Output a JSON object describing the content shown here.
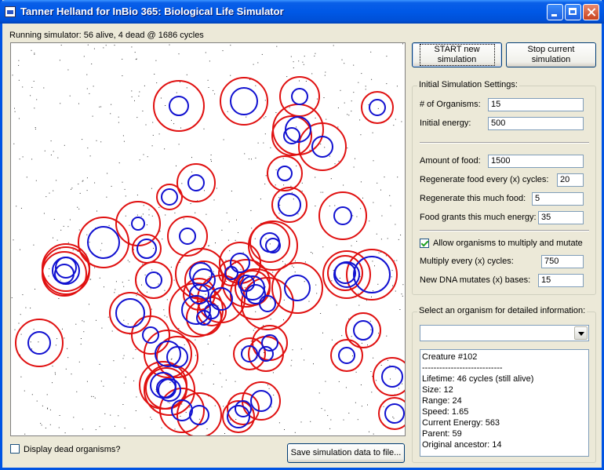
{
  "window": {
    "title": "Tanner Helland for InBio 365: Biological Life Simulator"
  },
  "status_text": "Running simulator: 56 alive, 4 dead @ 1686 cycles",
  "buttons": {
    "start": "START new simulation",
    "stop": "Stop current simulation",
    "save": "Save simulation data to file..."
  },
  "display_dead": {
    "label": "Display dead organisms?",
    "checked": false
  },
  "settings": {
    "title": "Initial Simulation Settings:",
    "num_organisms": {
      "label": "# of Organisms:",
      "value": "15"
    },
    "initial_energy": {
      "label": "Initial energy:",
      "value": "500"
    },
    "amount_food": {
      "label": "Amount of food:",
      "value": "1500"
    },
    "regen_cycles": {
      "label": "Regenerate food every (x) cycles:",
      "value": "20"
    },
    "regen_amount": {
      "label": "Regenerate this much food:",
      "value": "5"
    },
    "food_energy": {
      "label": "Food grants this much energy:",
      "value": "35"
    },
    "multiply": {
      "label": "Allow organisms to multiply and mutate",
      "checked": true
    },
    "multiply_cycles": {
      "label": "Multiply every (x) cycles:",
      "value": "750"
    },
    "dna_mutates": {
      "label": "New DNA mutates (x) bases:",
      "value": "15"
    }
  },
  "detail": {
    "title": "Select an organism for detailed information:",
    "selected": "",
    "lines": [
      "Creature #102",
      "----------------------------",
      "Lifetime: 46 cycles (still alive)",
      "Size: 12",
      "Range: 24",
      "Speed: 1.65",
      "Current Energy: 563",
      "Parent: 59",
      "Original ancestor: 14"
    ]
  },
  "colors": {
    "range": "#e01010",
    "body": "#1010d0",
    "food": "#333333"
  }
}
